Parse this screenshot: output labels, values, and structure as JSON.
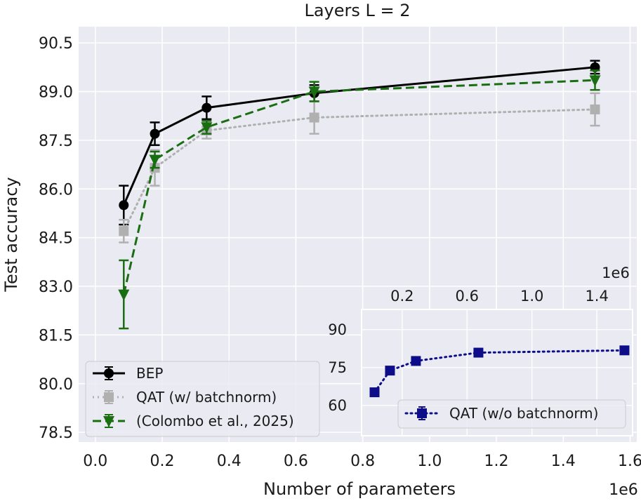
{
  "chart_data": [
    {
      "type": "line",
      "title": "Layers L = 2",
      "xlabel": "Number of parameters",
      "ylabel": "Test accuracy",
      "x_offset_label": "1e6",
      "xlim": [
        -0.05,
        1.62
      ],
      "ylim": [
        78.2,
        91.0
      ],
      "xticks": [
        0.0,
        0.2,
        0.4,
        0.6,
        0.8,
        1.0,
        1.2,
        1.4,
        1.6
      ],
      "xtick_labels": [
        "0.0",
        "0.2",
        "0.4",
        "0.6",
        "0.8",
        "1.0",
        "1.2",
        "1.4",
        "1.6"
      ],
      "yticks": [
        78.5,
        80.0,
        81.5,
        83.0,
        84.5,
        86.0,
        87.5,
        89.0,
        90.5
      ],
      "ytick_labels": [
        "78.5",
        "80.0",
        "81.5",
        "83.0",
        "84.5",
        "86.0",
        "87.5",
        "89.0",
        "90.5"
      ],
      "grid": true,
      "legend_position": "lower-left",
      "series": [
        {
          "name": "BEP",
          "color": "#000000",
          "linestyle": "solid",
          "marker": "circle",
          "x": [
            0.085,
            0.178,
            0.333,
            0.655,
            1.495
          ],
          "y": [
            85.5,
            87.7,
            88.5,
            88.95,
            89.75
          ],
          "err": [
            0.6,
            0.35,
            0.35,
            0.25,
            0.2
          ]
        },
        {
          "name": "QAT (w/ batchnorm)",
          "color": "#b0b0b0",
          "linestyle": "dotted",
          "marker": "square",
          "x": [
            0.085,
            0.178,
            0.333,
            0.655,
            1.495
          ],
          "y": [
            84.7,
            86.65,
            87.8,
            88.2,
            88.45
          ],
          "err": [
            0.35,
            0.55,
            0.25,
            0.5,
            0.5
          ]
        },
        {
          "name": "(Colombo et al., 2025)",
          "color": "#1a6e12",
          "linestyle": "dashed",
          "marker": "triangle-down",
          "x": [
            0.085,
            0.178,
            0.333,
            0.655,
            1.495
          ],
          "y": [
            82.75,
            86.9,
            87.9,
            89.0,
            89.35
          ],
          "err": [
            1.05,
            0.25,
            0.2,
            0.3,
            0.3
          ]
        }
      ]
    },
    {
      "type": "line",
      "title": "",
      "x_offset_label": "1e6",
      "xlim": [
        -0.05,
        1.62
      ],
      "ylim": [
        48,
        98
      ],
      "xticks": [
        0.2,
        0.6,
        1.0,
        1.4
      ],
      "xtick_labels": [
        "0.2",
        "0.6",
        "1.0",
        "1.4"
      ],
      "xaxis_position": "top",
      "yticks": [
        60,
        75,
        90
      ],
      "ytick_labels": [
        "60",
        "75",
        "90"
      ],
      "grid": true,
      "legend_position": "lower-right",
      "series": [
        {
          "name": "QAT (w/o batchnorm)",
          "color": "#0d0d8a",
          "linestyle": "dotted",
          "marker": "square",
          "x": [
            0.03,
            0.125,
            0.285,
            0.67,
            1.57
          ],
          "y": [
            65.2,
            73.8,
            77.6,
            80.9,
            81.8
          ],
          "err": [
            1.0,
            1.0,
            1.0,
            0.8,
            0.8
          ]
        }
      ]
    }
  ]
}
